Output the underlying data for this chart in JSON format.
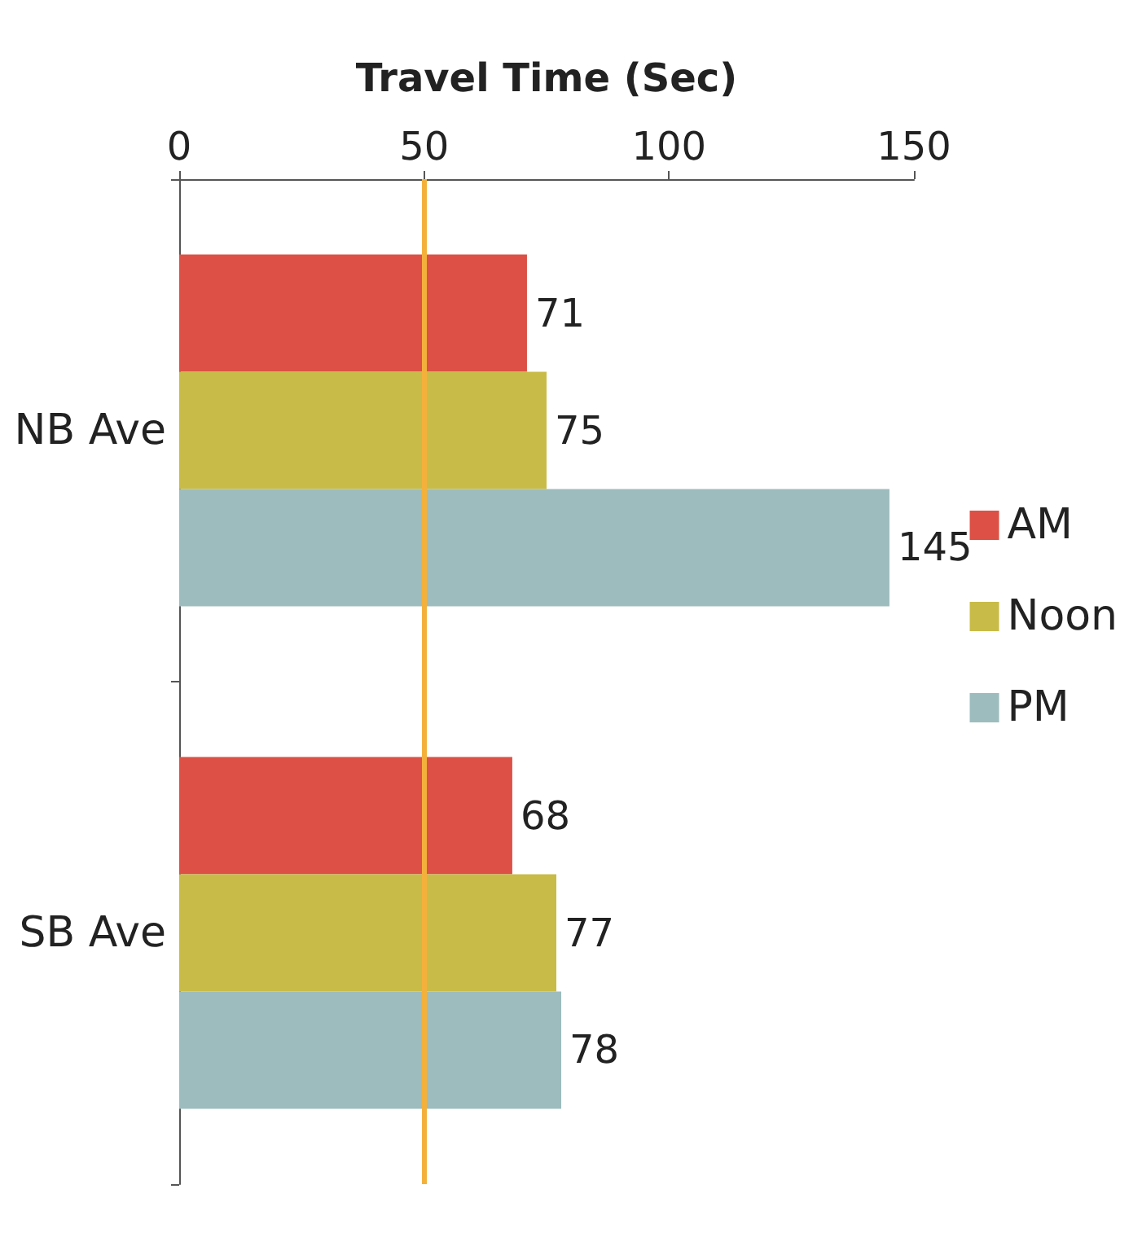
{
  "chart_data": {
    "type": "bar",
    "orientation": "horizontal",
    "xlabel": "Travel Time (Sec)",
    "categories": [
      "NB Ave",
      "SB Ave"
    ],
    "series": [
      {
        "name": "AM",
        "color": "#dc5045",
        "values": [
          71,
          68
        ]
      },
      {
        "name": "Noon",
        "color": "#c8bb48",
        "values": [
          75,
          77
        ]
      },
      {
        "name": "PM",
        "color": "#9dbcbd",
        "values": [
          145,
          78
        ]
      }
    ],
    "xlim": [
      0,
      150
    ],
    "xticks": [
      0,
      50,
      100,
      150
    ],
    "data_labels": true,
    "legend": "right",
    "grid": false,
    "ref_lines": [
      {
        "axis": "x",
        "value": 50,
        "color": "#f3b13c"
      }
    ]
  }
}
